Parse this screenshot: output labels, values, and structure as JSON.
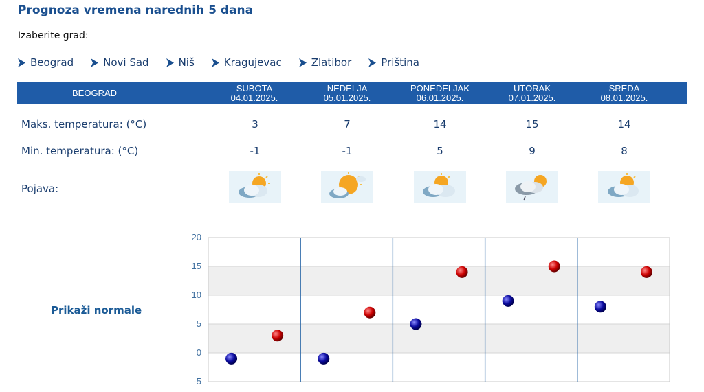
{
  "title": "Prognoza vremena narednih 5 dana",
  "choose_label": "Izaberite grad:",
  "cities": [
    "Beograd",
    "Novi Sad",
    "Niš",
    "Kragujevac",
    "Zlatibor",
    "Priština"
  ],
  "table": {
    "city": "BEOGRAD",
    "days": [
      {
        "name": "SUBOTA",
        "date": "04.01.2025.",
        "max": "3",
        "min": "-1",
        "icon": "sun-behind-cloud-icon"
      },
      {
        "name": "NEDELJA",
        "date": "05.01.2025.",
        "max": "7",
        "min": "-1",
        "icon": "sun-behind-cloud-icon"
      },
      {
        "name": "PONEDELJAK",
        "date": "06.01.2025.",
        "max": "14",
        "min": "5",
        "icon": "sun-behind-cloud-icon"
      },
      {
        "name": "UTORAK",
        "date": "07.01.2025.",
        "max": "15",
        "min": "9",
        "icon": "sun-behind-rain-cloud-icon"
      },
      {
        "name": "SREDA",
        "date": "08.01.2025.",
        "max": "14",
        "min": "8",
        "icon": "sun-behind-cloud-icon"
      }
    ],
    "max_label": "Maks. temperatura: (°C)",
    "min_label": "Min. temperatura: (°C)",
    "phen_label": "Pojava:"
  },
  "show_normals": "Prikaži normale",
  "colors": {
    "header_bg": "#1f5ca8",
    "max_point": "#cc0000",
    "min_point": "#0a0a9e"
  },
  "chart_data": {
    "type": "scatter",
    "ylim": [
      -5,
      20
    ],
    "yticks": [
      20,
      15,
      10,
      5,
      0,
      -5
    ],
    "grid": true,
    "series": [
      {
        "values": [
          -1,
          -1,
          5,
          9,
          8
        ],
        "color": "#0a0a9e"
      },
      {
        "values": [
          3,
          7,
          14,
          15,
          14
        ],
        "color": "#cc0000"
      }
    ]
  }
}
